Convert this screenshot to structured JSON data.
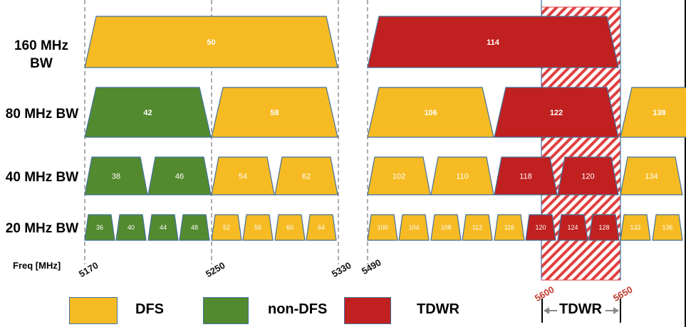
{
  "rows": [
    {
      "label": "160 MHz BW"
    },
    {
      "label": "80 MHz BW"
    },
    {
      "label": "40 MHz BW"
    },
    {
      "label": "20 MHz BW"
    }
  ],
  "freq_axis": {
    "label": "Freq [MHz]",
    "ticks": [
      "5170",
      "5250",
      "5330",
      "5490"
    ],
    "tdwr_ticks": [
      "5600",
      "5650"
    ]
  },
  "colors": {
    "dfs": "#f6bb23",
    "non_dfs": "#538a2f",
    "tdwr": "#c0201f",
    "outline": "#41719c",
    "hatch": "#e0403f"
  },
  "channels": {
    "bw160": [
      {
        "label": "50",
        "type": "dfs"
      },
      {
        "label": "114",
        "type": "tdwr"
      }
    ],
    "bw80": [
      {
        "label": "42",
        "type": "non_dfs"
      },
      {
        "label": "58",
        "type": "dfs"
      },
      {
        "label": "106",
        "type": "dfs"
      },
      {
        "label": "122",
        "type": "tdwr"
      },
      {
        "label": "138",
        "type": "dfs"
      }
    ],
    "bw40": [
      {
        "label": "38",
        "type": "non_dfs"
      },
      {
        "label": "46",
        "type": "non_dfs"
      },
      {
        "label": "54",
        "type": "dfs"
      },
      {
        "label": "62",
        "type": "dfs"
      },
      {
        "label": "102",
        "type": "dfs"
      },
      {
        "label": "110",
        "type": "dfs"
      },
      {
        "label": "118",
        "type": "tdwr"
      },
      {
        "label": "120",
        "type": "tdwr"
      },
      {
        "label": "134",
        "type": "dfs"
      }
    ],
    "bw20": [
      {
        "label": "36",
        "type": "non_dfs"
      },
      {
        "label": "40",
        "type": "non_dfs"
      },
      {
        "label": "44",
        "type": "non_dfs"
      },
      {
        "label": "48",
        "type": "non_dfs"
      },
      {
        "label": "52",
        "type": "dfs"
      },
      {
        "label": "56",
        "type": "dfs"
      },
      {
        "label": "60",
        "type": "dfs"
      },
      {
        "label": "64",
        "type": "dfs"
      },
      {
        "label": "100",
        "type": "dfs"
      },
      {
        "label": "104",
        "type": "dfs"
      },
      {
        "label": "108",
        "type": "dfs"
      },
      {
        "label": "112",
        "type": "dfs"
      },
      {
        "label": "116",
        "type": "dfs"
      },
      {
        "label": "120",
        "type": "tdwr"
      },
      {
        "label": "124",
        "type": "tdwr"
      },
      {
        "label": "128",
        "type": "tdwr"
      },
      {
        "label": "132",
        "type": "dfs"
      },
      {
        "label": "136",
        "type": "dfs"
      }
    ]
  },
  "legend": {
    "dfs": "DFS",
    "non_dfs": "non-DFS",
    "tdwr": "TDWR",
    "tdwr_span": "TDWR"
  }
}
